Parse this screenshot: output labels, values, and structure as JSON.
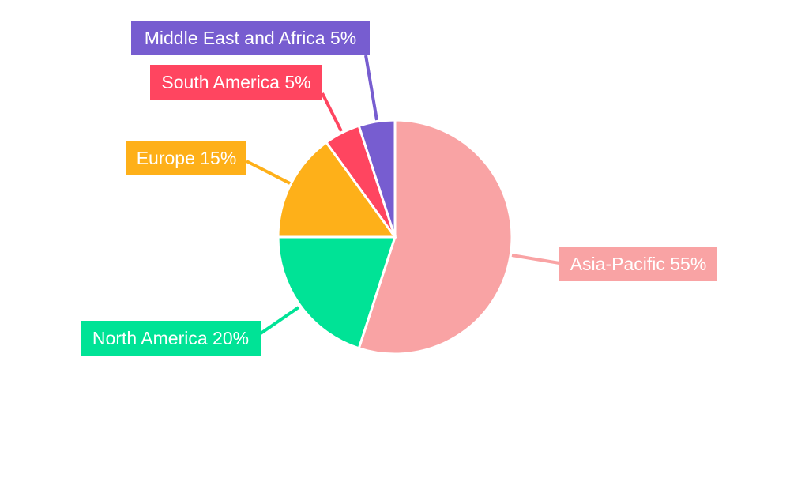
{
  "chart_data": {
    "type": "pie",
    "categories": [
      "Asia-Pacific",
      "North America",
      "Europe",
      "South America",
      "Middle East and Africa"
    ],
    "values": [
      55,
      20,
      15,
      5,
      5
    ],
    "labels": [
      "Asia-Pacific 55%",
      "North America 20%",
      "Europe 15%",
      "South America 5%",
      "Middle East and Africa 5%"
    ],
    "colors": [
      "#F9A3A4",
      "#00E396",
      "#FEB019",
      "#FF4560",
      "#775DD0"
    ],
    "start_angle": "top, clockwise",
    "legend": "none"
  }
}
